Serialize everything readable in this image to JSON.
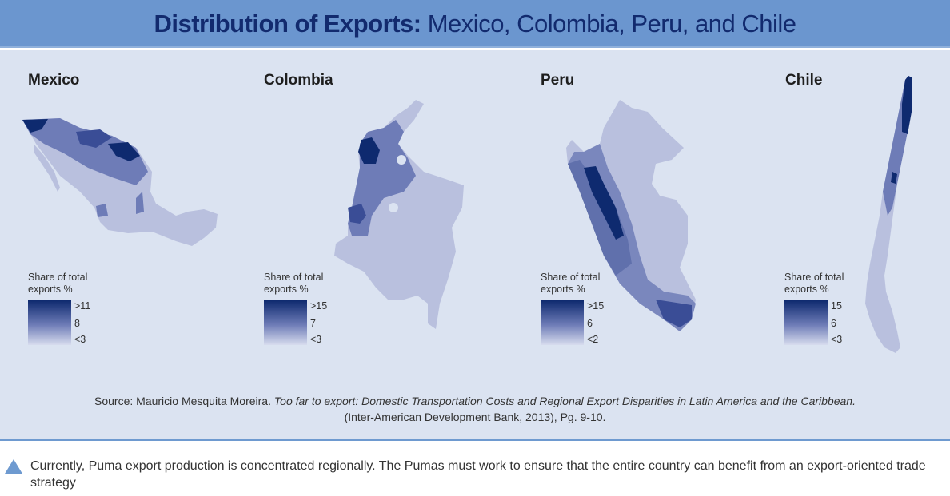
{
  "title": {
    "bold": "Distribution of Exports:",
    "rest": " Mexico, Colombia, Peru, and Chile"
  },
  "legend_title_line1": "Share of total",
  "legend_title_line2": "exports %",
  "maps": [
    {
      "country": "Mexico",
      "legend": [
        ">11",
        "8",
        "<3"
      ]
    },
    {
      "country": "Colombia",
      "legend": [
        ">15",
        "7",
        "<3"
      ]
    },
    {
      "country": "Peru",
      "legend": [
        ">15",
        "6",
        "<2"
      ]
    },
    {
      "country": "Chile",
      "legend": [
        "15",
        "6",
        "<3"
      ]
    }
  ],
  "source": {
    "prefix": "Source: Mauricio Mesquita Moreira. ",
    "title": "Too far to export: Domestic Transportation Costs and Regional Export Disparities in Latin America and the Caribbean.",
    "line2": "(Inter-American Development Bank, 2013), Pg. 9-10."
  },
  "bullet": "Currently, Puma export production is concentrated regionally. The Pumas must work to ensure that the entire country can benefit from an export-oriented trade strategy",
  "colors": {
    "dark": "#0e2a6f",
    "mid": "#6e7cb7",
    "light": "#b9c0de",
    "title_bar": "#6b96cf",
    "background": "#dbe3f1"
  }
}
